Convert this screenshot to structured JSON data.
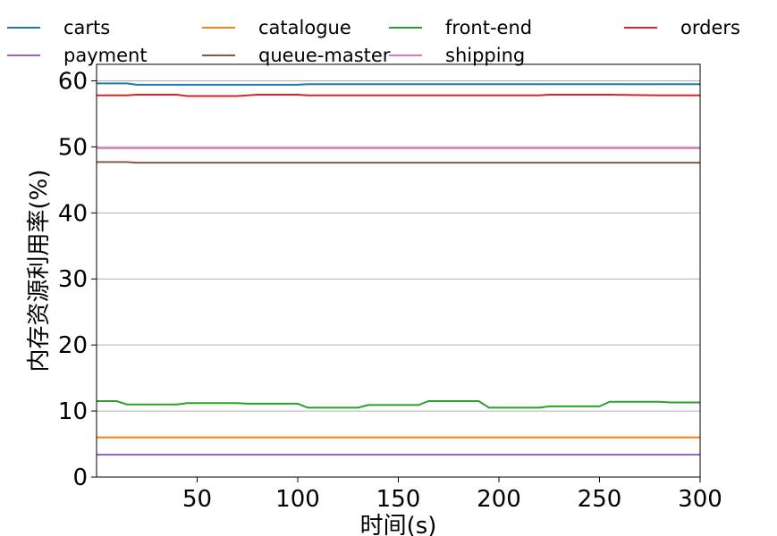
{
  "chart_data": {
    "type": "line",
    "xlabel": "时间(s)",
    "ylabel": "内存资源利用率(%)",
    "xlim": [
      0,
      300
    ],
    "ylim": [
      0,
      62.5
    ],
    "xticks": [
      50,
      100,
      150,
      200,
      250,
      300
    ],
    "yticks": [
      0,
      10,
      20,
      30,
      40,
      50,
      60
    ],
    "grid": "y",
    "legend": "top",
    "x": [
      0,
      10,
      15,
      20,
      40,
      45,
      70,
      75,
      80,
      100,
      105,
      130,
      135,
      160,
      165,
      190,
      195,
      220,
      225,
      250,
      255,
      280,
      285,
      300
    ],
    "series": [
      {
        "name": "carts",
        "color": "#1f77b4",
        "values": [
          59.6,
          59.6,
          59.6,
          59.4,
          59.4,
          59.4,
          59.4,
          59.4,
          59.4,
          59.4,
          59.5,
          59.5,
          59.5,
          59.5,
          59.5,
          59.5,
          59.5,
          59.5,
          59.5,
          59.5,
          59.5,
          59.5,
          59.5,
          59.5
        ]
      },
      {
        "name": "catalogue",
        "color": "#ff7f0e",
        "values": [
          6.0,
          6.0,
          6.0,
          6.0,
          6.0,
          6.0,
          6.0,
          6.0,
          6.0,
          6.0,
          6.0,
          6.0,
          6.0,
          6.0,
          6.0,
          6.0,
          6.0,
          6.0,
          6.0,
          6.0,
          6.0,
          6.0,
          6.0,
          6.0
        ]
      },
      {
        "name": "front-end",
        "color": "#2ca02c",
        "values": [
          11.5,
          11.5,
          11.0,
          11.0,
          11.0,
          11.2,
          11.2,
          11.1,
          11.1,
          11.1,
          10.5,
          10.5,
          10.9,
          10.9,
          11.5,
          11.5,
          10.5,
          10.5,
          10.7,
          10.7,
          11.4,
          11.4,
          11.3,
          11.3
        ]
      },
      {
        "name": "orders",
        "color": "#d62728",
        "values": [
          57.8,
          57.8,
          57.8,
          57.9,
          57.9,
          57.7,
          57.7,
          57.8,
          57.9,
          57.9,
          57.8,
          57.8,
          57.8,
          57.8,
          57.8,
          57.8,
          57.8,
          57.8,
          57.9,
          57.9,
          57.9,
          57.8,
          57.8,
          57.8
        ]
      },
      {
        "name": "payment",
        "color": "#9467bd",
        "values": [
          3.4,
          3.4,
          3.4,
          3.4,
          3.4,
          3.4,
          3.4,
          3.4,
          3.4,
          3.4,
          3.4,
          3.4,
          3.4,
          3.4,
          3.4,
          3.4,
          3.4,
          3.4,
          3.4,
          3.4,
          3.4,
          3.4,
          3.4,
          3.4
        ]
      },
      {
        "name": "queue-master",
        "color": "#8c564b",
        "values": [
          47.7,
          47.7,
          47.7,
          47.6,
          47.6,
          47.6,
          47.6,
          47.6,
          47.6,
          47.6,
          47.6,
          47.6,
          47.6,
          47.6,
          47.6,
          47.6,
          47.6,
          47.6,
          47.6,
          47.6,
          47.6,
          47.6,
          47.6,
          47.6
        ]
      },
      {
        "name": "shipping",
        "color": "#e377c2",
        "values": [
          49.8,
          49.8,
          49.8,
          49.8,
          49.8,
          49.8,
          49.8,
          49.8,
          49.8,
          49.8,
          49.8,
          49.8,
          49.8,
          49.8,
          49.8,
          49.8,
          49.8,
          49.8,
          49.8,
          49.8,
          49.8,
          49.8,
          49.8,
          49.8
        ]
      }
    ]
  }
}
